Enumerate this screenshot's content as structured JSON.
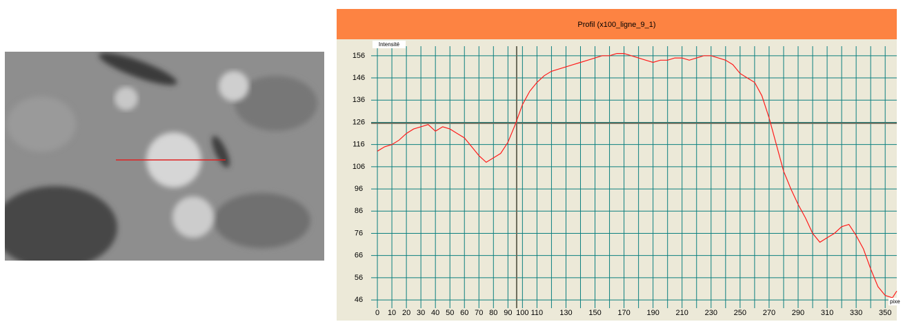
{
  "chart_data": {
    "type": "line",
    "title": "Profil (x100_ligne_9_1)",
    "y_label": "Intensité",
    "x_label": "pixe",
    "x": [
      0,
      5,
      10,
      15,
      20,
      25,
      30,
      35,
      40,
      45,
      50,
      55,
      60,
      65,
      70,
      75,
      80,
      85,
      90,
      95,
      100,
      105,
      110,
      115,
      120,
      125,
      130,
      135,
      140,
      145,
      150,
      155,
      160,
      165,
      170,
      175,
      180,
      185,
      190,
      195,
      200,
      205,
      210,
      215,
      220,
      225,
      230,
      235,
      240,
      245,
      250,
      255,
      260,
      265,
      270,
      275,
      280,
      285,
      290,
      295,
      300,
      305,
      310,
      315,
      320,
      325,
      330,
      335,
      340,
      345,
      350,
      355,
      358
    ],
    "series": [
      {
        "color": "#ff1a1a",
        "values": [
          113,
          115,
          116,
          118,
          121,
          123,
          124,
          125,
          122,
          124,
          123,
          121,
          119,
          115,
          111,
          108,
          110,
          112,
          117,
          125,
          134,
          140,
          144,
          147,
          149,
          150,
          151,
          152,
          153,
          154,
          155,
          156,
          156,
          157,
          157,
          156,
          155,
          154,
          153,
          154,
          154,
          155,
          155,
          154,
          155,
          156,
          156,
          155,
          154,
          152,
          148,
          146,
          144,
          138,
          128,
          116,
          104,
          96,
          89,
          83,
          76,
          72,
          74,
          76,
          79,
          80,
          75,
          69,
          60,
          52,
          48,
          47,
          50
        ]
      }
    ],
    "xlim": [
      -4.3,
      358
    ],
    "ylim": [
      42.3,
      160.3
    ],
    "xticks": [
      0,
      10,
      20,
      30,
      40,
      50,
      60,
      70,
      80,
      90,
      100,
      110,
      130,
      150,
      170,
      190,
      210,
      230,
      250,
      270,
      290,
      310,
      330,
      350
    ],
    "xminorticks": [
      120,
      140,
      160,
      180,
      200,
      220,
      240,
      260,
      280,
      300,
      320,
      340
    ],
    "yticks": [
      46,
      56,
      66,
      76,
      86,
      96,
      106,
      116,
      126,
      136,
      146,
      156
    ],
    "grid": true,
    "grid_color": "#0b7f7f",
    "cursor": {
      "x": 96,
      "y": 125.6
    },
    "cursor_color": "#6b6b5a"
  }
}
